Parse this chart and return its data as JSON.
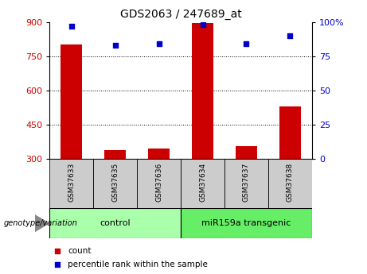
{
  "title": "GDS2063 / 247689_at",
  "categories": [
    "GSM37633",
    "GSM37635",
    "GSM37636",
    "GSM37634",
    "GSM37637",
    "GSM37638"
  ],
  "count_values": [
    800,
    340,
    345,
    895,
    355,
    530
  ],
  "percentile_values": [
    97,
    83,
    84,
    98,
    84,
    90
  ],
  "ylim_left": [
    300,
    900
  ],
  "ylim_right": [
    0,
    100
  ],
  "yticks_left": [
    300,
    450,
    600,
    750,
    900
  ],
  "yticks_right": [
    0,
    25,
    50,
    75,
    100
  ],
  "yticklabels_right": [
    "0",
    "25",
    "50",
    "75",
    "100%"
  ],
  "bar_color": "#cc0000",
  "dot_color": "#0000cc",
  "bar_width": 0.5,
  "groups": [
    {
      "label": "control",
      "indices": [
        0,
        1,
        2
      ],
      "color": "#aaffaa"
    },
    {
      "label": "miR159a transgenic",
      "indices": [
        3,
        4,
        5
      ],
      "color": "#66ee66"
    }
  ],
  "group_label": "genotype/variation",
  "legend_count": "count",
  "legend_percentile": "percentile rank within the sample",
  "title_fontsize": 10,
  "tick_label_color_left": "#cc0000",
  "tick_label_color_right": "#0000cc",
  "sample_box_color": "#cccccc",
  "arrow_color": "#888888"
}
